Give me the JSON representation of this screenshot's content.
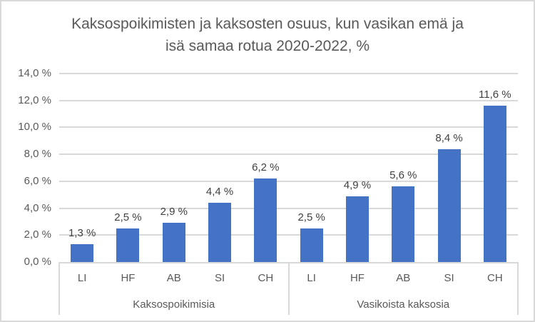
{
  "chart_data": {
    "type": "bar",
    "title": "Kaksospoikimisten ja kaksosten osuus, kun vasikan emä ja isä samaa rotua 2020-2022, %",
    "title_lines": [
      "Kaksospoikimisten ja kaksosten osuus, kun vasikan emä ja",
      "isä samaa rotua 2020-2022, %"
    ],
    "xlabel": "",
    "ylabel": "",
    "ylim": [
      0,
      14
    ],
    "yticks": [
      "0,0 %",
      "2,0 %",
      "4,0 %",
      "6,0 %",
      "8,0 %",
      "10,0 %",
      "12,0 %",
      "14,0 %"
    ],
    "grid": true,
    "legend": null,
    "bar_color": "#4472c4",
    "groups": [
      {
        "name": "Kaksospoikimisia",
        "categories": [
          "LI",
          "HF",
          "AB",
          "SI",
          "CH"
        ],
        "values": [
          1.3,
          2.5,
          2.9,
          4.4,
          6.2
        ],
        "labels": [
          "1,3 %",
          "2,5 %",
          "2,9 %",
          "4,4 %",
          "6,2 %"
        ]
      },
      {
        "name": "Vasikoista kaksosia",
        "categories": [
          "LI",
          "HF",
          "AB",
          "SI",
          "CH"
        ],
        "values": [
          2.5,
          4.9,
          5.6,
          8.4,
          11.6
        ],
        "labels": [
          "2,5 %",
          "4,9 %",
          "5,6 %",
          "8,4 %",
          "11,6 %"
        ]
      }
    ]
  }
}
